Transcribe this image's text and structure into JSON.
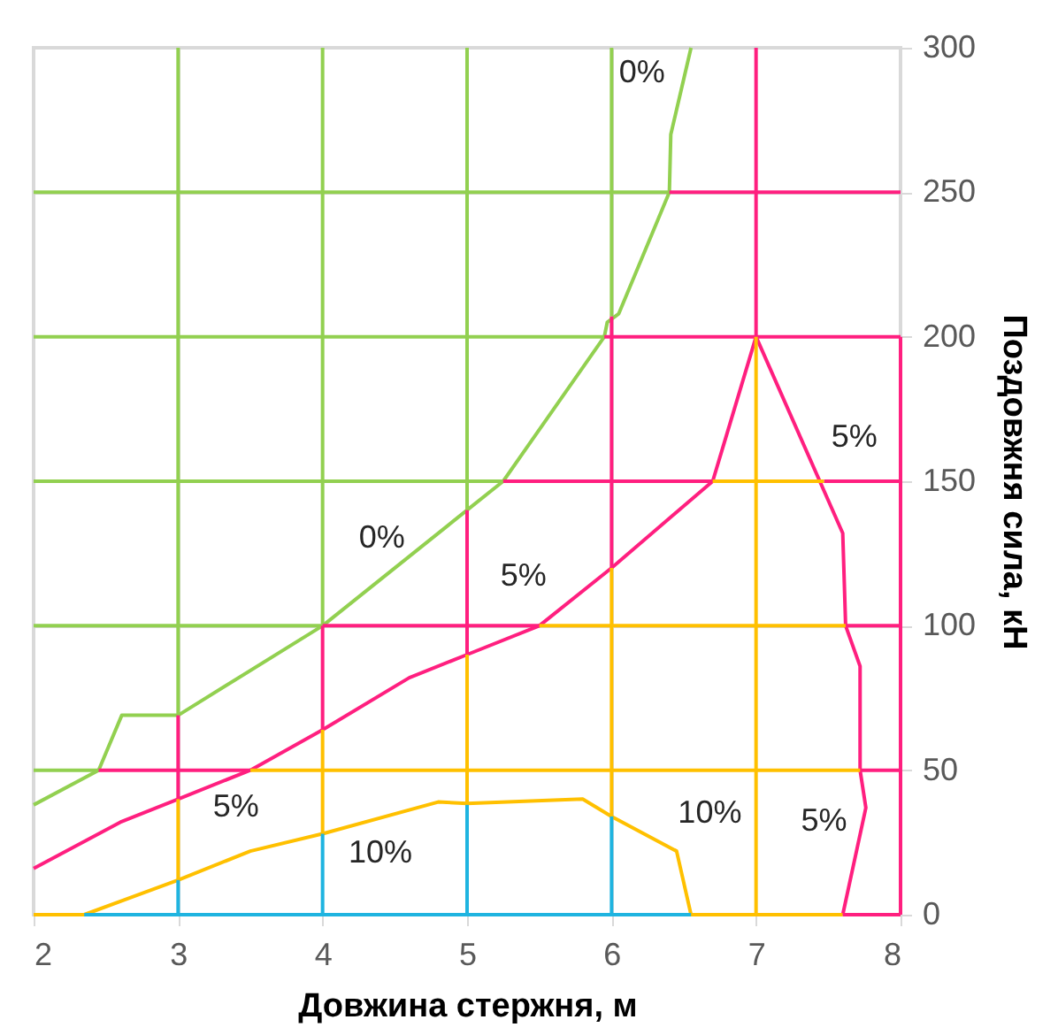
{
  "chart_data": {
    "type": "line",
    "xlabel": "Довжина стержня, м",
    "ylabel": "Поздовжня сила, кН",
    "xlim": [
      2,
      8
    ],
    "xticks": [
      2,
      3,
      4,
      5,
      6,
      7,
      8
    ],
    "ylim": [
      0,
      300
    ],
    "yticks": [
      0,
      50,
      100,
      150,
      200,
      250,
      300
    ],
    "grid": true,
    "legend": false,
    "marker": "none",
    "line_style": "solid",
    "series": [
      {
        "color": "#92d050",
        "x": [
          2,
          2.45,
          2.61,
          3,
          4,
          5,
          5.25,
          5.95,
          5.97,
          6.05,
          6.4,
          6.41,
          6.55
        ],
        "values": [
          38,
          50,
          69,
          69,
          100,
          140,
          150,
          200,
          205,
          208,
          250,
          270,
          300
        ]
      },
      {
        "color": "#ff1f7f",
        "x": [
          2,
          2.6,
          3,
          3.5,
          4,
          4.6,
          5,
          5.5,
          6,
          6.7,
          7,
          7.6,
          7.62,
          7.72,
          7.72,
          7.76,
          7.6
        ],
        "values": [
          16,
          32,
          40,
          50,
          64,
          82,
          90,
          100,
          120,
          150,
          200,
          132,
          100,
          86,
          50,
          37,
          0
        ]
      },
      {
        "color": "#ffc000",
        "x": [
          2,
          2.35,
          3,
          3.5,
          4,
          4.8,
          5,
          5.8,
          6,
          6.45,
          6.55,
          7.6
        ],
        "values": [
          0,
          0,
          12,
          22,
          28,
          39,
          38.5,
          40,
          34,
          22,
          0,
          0
        ]
      },
      {
        "color": "#92d050",
        "x": [
          3,
          3
        ],
        "values": [
          69,
          300
        ]
      },
      {
        "color": "#92d050",
        "x": [
          4,
          4
        ],
        "values": [
          100,
          300
        ]
      },
      {
        "color": "#92d050",
        "x": [
          5,
          5
        ],
        "values": [
          140,
          300
        ]
      },
      {
        "color": "#92d050",
        "x": [
          6,
          6
        ],
        "values": [
          207,
          300
        ]
      },
      {
        "color": "#92d050",
        "x": [
          2,
          2.45
        ],
        "values": [
          50,
          50
        ]
      },
      {
        "color": "#92d050",
        "x": [
          2,
          4
        ],
        "values": [
          100,
          100
        ]
      },
      {
        "color": "#92d050",
        "x": [
          2,
          5.25
        ],
        "values": [
          150,
          150
        ]
      },
      {
        "color": "#92d050",
        "x": [
          2,
          5.95
        ],
        "values": [
          200,
          200
        ]
      },
      {
        "color": "#92d050",
        "x": [
          2,
          6.4
        ],
        "values": [
          250,
          250
        ]
      },
      {
        "color": "#ff1f7f",
        "x": [
          3,
          3
        ],
        "values": [
          40,
          69
        ]
      },
      {
        "color": "#ff1f7f",
        "x": [
          4,
          4
        ],
        "values": [
          64,
          100
        ]
      },
      {
        "color": "#ff1f7f",
        "x": [
          5,
          5
        ],
        "values": [
          90,
          140
        ]
      },
      {
        "color": "#ff1f7f",
        "x": [
          6,
          6
        ],
        "values": [
          120,
          207
        ]
      },
      {
        "color": "#ff1f7f",
        "x": [
          7,
          7
        ],
        "values": [
          200,
          300
        ]
      },
      {
        "color": "#ff1f7f",
        "x": [
          8,
          8
        ],
        "values": [
          0,
          200
        ]
      },
      {
        "color": "#ff1f7f",
        "x": [
          7.6,
          8
        ],
        "values": [
          0,
          0
        ]
      },
      {
        "color": "#ff1f7f",
        "x": [
          2.45,
          3.5
        ],
        "values": [
          50,
          50
        ]
      },
      {
        "color": "#ff1f7f",
        "x": [
          7.72,
          8
        ],
        "values": [
          50,
          50
        ]
      },
      {
        "color": "#ff1f7f",
        "x": [
          4,
          5.5
        ],
        "values": [
          100,
          100
        ]
      },
      {
        "color": "#ff1f7f",
        "x": [
          7.62,
          8
        ],
        "values": [
          100,
          100
        ]
      },
      {
        "color": "#ff1f7f",
        "x": [
          5.25,
          6.7
        ],
        "values": [
          150,
          150
        ]
      },
      {
        "color": "#ff1f7f",
        "x": [
          7.47,
          8
        ],
        "values": [
          150,
          150
        ]
      },
      {
        "color": "#ff1f7f",
        "x": [
          5.95,
          8
        ],
        "values": [
          200,
          200
        ]
      },
      {
        "color": "#ff1f7f",
        "x": [
          6.4,
          8
        ],
        "values": [
          250,
          250
        ]
      },
      {
        "color": "#ffc000",
        "x": [
          3,
          3
        ],
        "values": [
          12,
          40
        ]
      },
      {
        "color": "#ffc000",
        "x": [
          4,
          4
        ],
        "values": [
          28,
          64
        ]
      },
      {
        "color": "#ffc000",
        "x": [
          5,
          5
        ],
        "values": [
          38,
          90
        ]
      },
      {
        "color": "#ffc000",
        "x": [
          6,
          6
        ],
        "values": [
          34,
          120
        ]
      },
      {
        "color": "#ffc000",
        "x": [
          7,
          7
        ],
        "values": [
          0,
          200
        ]
      },
      {
        "color": "#ffc000",
        "x": [
          3.5,
          7.72
        ],
        "values": [
          50,
          50
        ]
      },
      {
        "color": "#ffc000",
        "x": [
          5.5,
          7.62
        ],
        "values": [
          100,
          100
        ]
      },
      {
        "color": "#ffc000",
        "x": [
          6.7,
          7.47
        ],
        "values": [
          150,
          150
        ]
      },
      {
        "color": "#1fb4e0",
        "x": [
          3,
          3
        ],
        "values": [
          0,
          12
        ]
      },
      {
        "color": "#1fb4e0",
        "x": [
          4,
          4
        ],
        "values": [
          0,
          28
        ]
      },
      {
        "color": "#1fb4e0",
        "x": [
          5,
          5
        ],
        "values": [
          0,
          38
        ]
      },
      {
        "color": "#1fb4e0",
        "x": [
          6,
          6
        ],
        "values": [
          0,
          34
        ]
      },
      {
        "color": "#1fb4e0",
        "x": [
          2.35,
          6.55
        ],
        "values": [
          0,
          0
        ]
      }
    ],
    "annotations": [
      "0%",
      "0%",
      "5%",
      "5%",
      "5%",
      "5%",
      "10%",
      "10%"
    ]
  }
}
